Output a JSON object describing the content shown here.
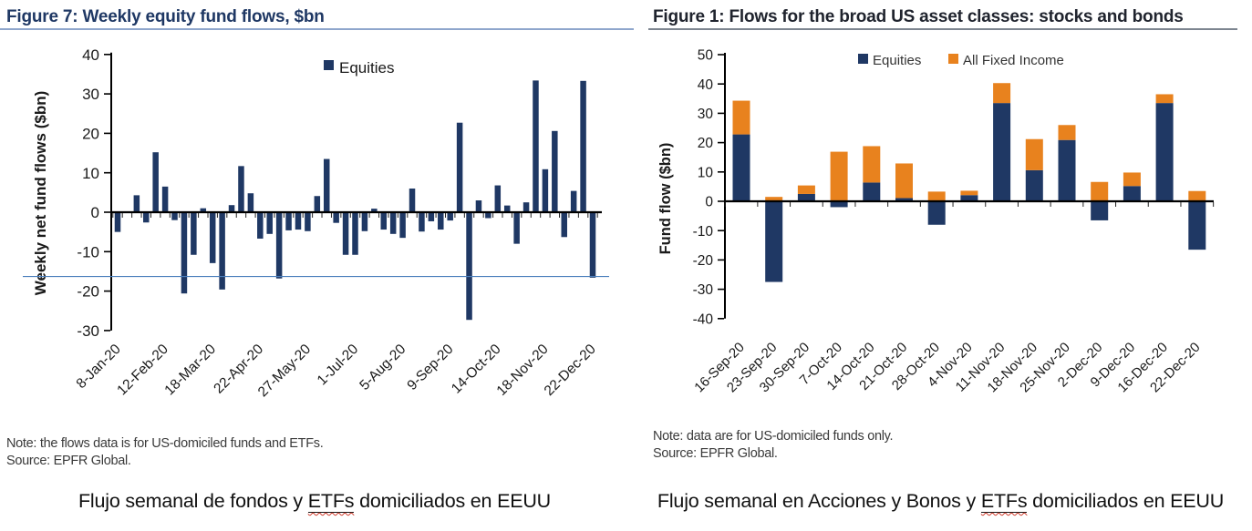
{
  "page": {
    "background": "#ffffff"
  },
  "figures": [
    {
      "title": "Figure 7: Weekly equity fund flows, $bn",
      "note": "Note: the flows data is for US-domiciled funds and ETFs.",
      "source": "Source: EPFR Global.",
      "caption": {
        "pre": "Flujo semanal de fondos y ",
        "highlight": "ETFs",
        "post": " domiciliados en EEUU"
      },
      "chart_data": {
        "type": "bar",
        "title": "Figure 7: Weekly equity fund flows, $bn",
        "ylabel": "Weekly net fund flows ($bn)",
        "ylim": [
          -30,
          40
        ],
        "ytick_step": 10,
        "legend": [
          {
            "label": "Equities",
            "color": "#1f3864"
          }
        ],
        "series_name": "Equities",
        "bar_color": "#1f3864",
        "x_tick_labels": [
          "8-Jan-20",
          "12-Feb-20",
          "18-Mar-20",
          "22-Apr-20",
          "27-May-20",
          "1-Jul-20",
          "5-Aug-20",
          "9-Sep-20",
          "14-Oct-20",
          "18-Nov-20",
          "22-Dec-20"
        ],
        "x_tick_indices": [
          0,
          5,
          10,
          15,
          20,
          25,
          30,
          35,
          40,
          45,
          50
        ],
        "values": [
          -5.0,
          0.2,
          4.3,
          -2.6,
          15.2,
          6.5,
          -2.0,
          -20.6,
          -10.8,
          1.0,
          -12.9,
          -19.6,
          1.8,
          11.7,
          4.8,
          -6.7,
          -5.5,
          -16.8,
          -4.6,
          -4.4,
          -4.8,
          4.1,
          13.5,
          -2.7,
          -10.8,
          -10.8,
          -4.8,
          0.9,
          -4.4,
          -5.5,
          -6.5,
          6.0,
          -4.9,
          -2.3,
          -4.4,
          -2.1,
          22.7,
          -27.3,
          3.0,
          -1.5,
          6.8,
          1.7,
          -8.0,
          2.5,
          33.4,
          10.9,
          20.6,
          -6.3,
          5.4,
          33.3,
          -16.6
        ],
        "ref_line": {
          "y": -16.3,
          "color": "#4a7ebb"
        },
        "grid": false,
        "legend_position": "top-center"
      }
    },
    {
      "title": "Figure 1: Flows for the broad US asset classes: stocks and bonds",
      "note": "Note: data are for US-domiciled funds only.",
      "source": "Source: EPFR Global.",
      "caption": {
        "pre": "Flujo semanal en Acciones y Bonos y ",
        "highlight": "ETFs",
        "post": " domiciliados en EEUU"
      },
      "chart_data": {
        "type": "stacked-bar",
        "title": "Figure 1: Flows for the broad US asset classes: stocks and bonds",
        "ylabel": "Fund flow ($bn)",
        "ylim": [
          -40,
          50
        ],
        "ytick_step": 10,
        "categories": [
          "16-Sep-20",
          "23-Sep-20",
          "30-Sep-20",
          "7-Oct-20",
          "14-Oct-20",
          "21-Oct-20",
          "28-Oct-20",
          "4-Nov-20",
          "11-Nov-20",
          "18-Nov-20",
          "25-Nov-20",
          "2-Dec-20",
          "9-Dec-20",
          "16-Dec-20",
          "22-Dec-20"
        ],
        "series": [
          {
            "name": "Equities",
            "color": "#1f3864",
            "values": [
              22.8,
              -27.5,
              2.5,
              -2.0,
              6.4,
              1.1,
              -8.0,
              2.1,
              33.5,
              10.6,
              20.9,
              -6.5,
              5.2,
              33.5,
              -16.5
            ]
          },
          {
            "name": "All Fixed Income",
            "color": "#e8821e",
            "values": [
              11.5,
              1.5,
              2.9,
              16.9,
              12.4,
              11.8,
              3.3,
              1.5,
              6.8,
              10.6,
              5.1,
              6.6,
              4.6,
              3.0,
              3.5
            ]
          }
        ],
        "grid": false,
        "legend_position": "top-center"
      }
    }
  ]
}
